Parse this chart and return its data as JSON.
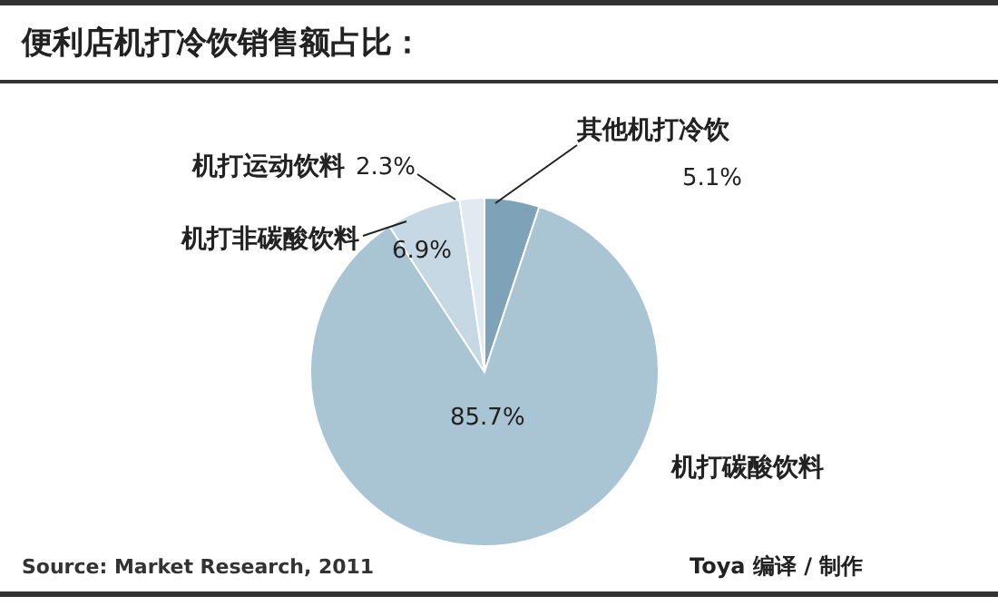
{
  "chart_data": {
    "type": "pie",
    "title": "便利店机打冷饮销售额占比：",
    "categories": [
      "其他机打冷饮",
      "机打碳酸饮料",
      "机打非碳酸饮料",
      "机打运动饮料"
    ],
    "values": [
      5.1,
      85.7,
      6.9,
      2.3
    ],
    "colors": [
      "#7ea3b8",
      "#a9c4d3",
      "#c6d8e3",
      "#e1eaf0"
    ],
    "value_labels": [
      "5.1%",
      "85.7%",
      "6.9%",
      "2.3%"
    ],
    "annotations": [
      "Source: Market Research, 2011",
      "Toya 编译 / 制作"
    ]
  }
}
